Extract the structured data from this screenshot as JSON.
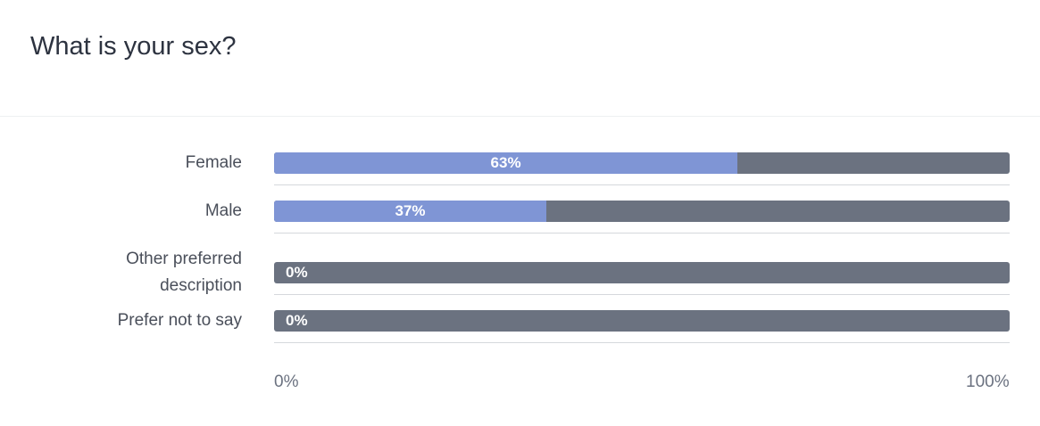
{
  "chart_data": {
    "type": "bar",
    "orientation": "horizontal",
    "title": "What is your sex?",
    "categories": [
      "Female",
      "Male",
      "Other preferred description",
      "Prefer not to say"
    ],
    "values": [
      63,
      37,
      0,
      0
    ],
    "value_labels": [
      "63%",
      "37%",
      "0%",
      "0%"
    ],
    "color": "#7f95d5",
    "track_color": "#6b7280",
    "xlim": [
      0,
      100
    ],
    "xticks": [
      {
        "value": 0,
        "label": "0%"
      },
      {
        "value": 100,
        "label": "100%"
      }
    ]
  }
}
